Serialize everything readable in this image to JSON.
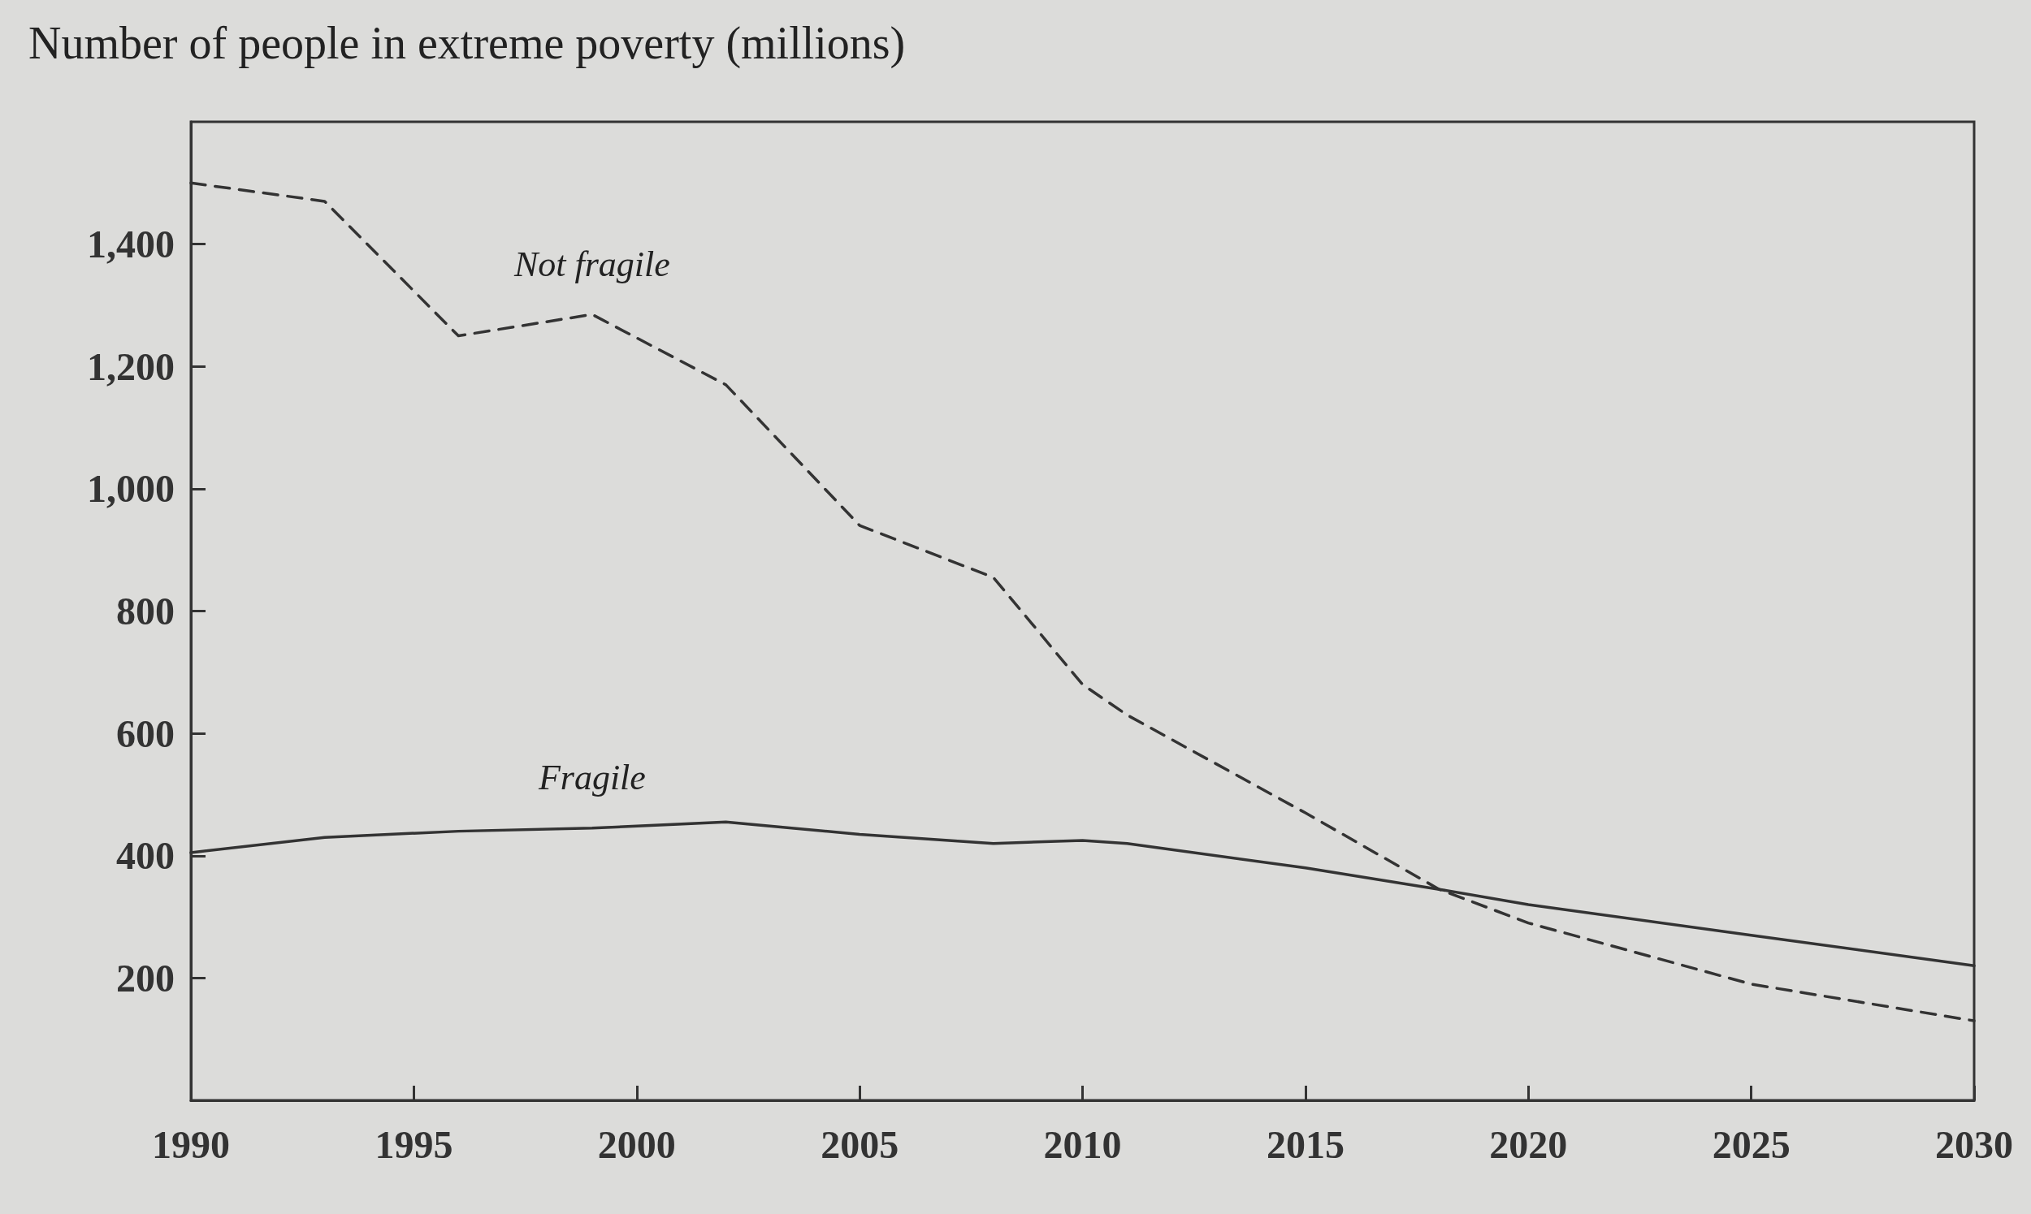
{
  "chart_data": {
    "type": "line",
    "title": "Number of people in extreme poverty (millions)",
    "x": [
      1990,
      1993,
      1996,
      1999,
      2002,
      2005,
      2008,
      2010,
      2011,
      2015,
      2018,
      2020,
      2025,
      2030
    ],
    "series": [
      {
        "name": "Not fragile",
        "color": "#333333",
        "line_style": "dashed",
        "values": [
          1500,
          1470,
          1250,
          1285,
          1170,
          940,
          855,
          680,
          630,
          470,
          345,
          290,
          190,
          130
        ]
      },
      {
        "name": "Fragile",
        "color": "#333333",
        "line_style": "solid",
        "values": [
          405,
          430,
          440,
          445,
          455,
          435,
          420,
          425,
          420,
          380,
          345,
          320,
          270,
          220
        ]
      }
    ],
    "xlim": [
      1990,
      2030
    ],
    "xticks": [
      1990,
      1995,
      2000,
      2005,
      2010,
      2015,
      2020,
      2025,
      2030
    ],
    "ylim": [
      0,
      1600
    ],
    "yticks": [
      {
        "value": 200,
        "label": "200"
      },
      {
        "value": 400,
        "label": "400"
      },
      {
        "value": 600,
        "label": "600"
      },
      {
        "value": 800,
        "label": "800"
      },
      {
        "value": 1000,
        "label": "1,000"
      },
      {
        "value": 1200,
        "label": "1,200"
      },
      {
        "value": 1400,
        "label": "1,400"
      }
    ],
    "grid": false,
    "legend": false,
    "marker": "none"
  }
}
